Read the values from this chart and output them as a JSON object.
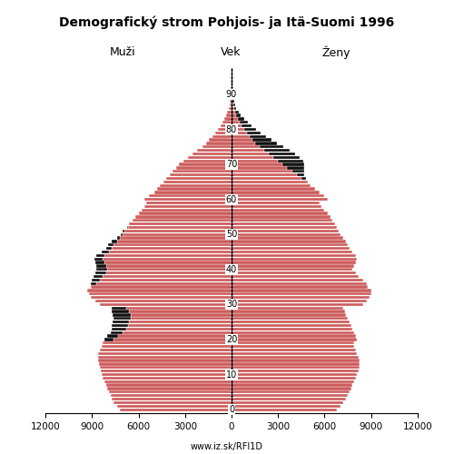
{
  "title": "Demografický strom Pohjois- ja Itä-Suomi 1996",
  "subtitle": "www.iz.sk/RFI1D",
  "label_males": "Muži",
  "label_females": "Ženy",
  "label_age": "Vek",
  "xlim": 12000,
  "bar_color_main": "#cd5c5c",
  "bar_color_dark": "#111111",
  "bar_edgecolor": "#ffffff",
  "background_color": "#ffffff",
  "ages": [
    0,
    1,
    2,
    3,
    4,
    5,
    6,
    7,
    8,
    9,
    10,
    11,
    12,
    13,
    14,
    15,
    16,
    17,
    18,
    19,
    20,
    21,
    22,
    23,
    24,
    25,
    26,
    27,
    28,
    29,
    30,
    31,
    32,
    33,
    34,
    35,
    36,
    37,
    38,
    39,
    40,
    41,
    42,
    43,
    44,
    45,
    46,
    47,
    48,
    49,
    50,
    51,
    52,
    53,
    54,
    55,
    56,
    57,
    58,
    59,
    60,
    61,
    62,
    63,
    64,
    65,
    66,
    67,
    68,
    69,
    70,
    71,
    72,
    73,
    74,
    75,
    76,
    77,
    78,
    79,
    80,
    81,
    82,
    83,
    84,
    85,
    86,
    87,
    88,
    89,
    90,
    91,
    92,
    93,
    94,
    95,
    96,
    97
  ],
  "males_pink": [
    7200,
    7400,
    7600,
    7700,
    7800,
    7900,
    8000,
    8100,
    8200,
    8300,
    8400,
    8450,
    8500,
    8550,
    8600,
    8600,
    8600,
    8500,
    8400,
    8300,
    7600,
    7300,
    7000,
    6800,
    6700,
    6600,
    6500,
    6500,
    6600,
    6800,
    8500,
    8800,
    9100,
    9200,
    9300,
    9100,
    8700,
    8500,
    8300,
    8100,
    8000,
    8100,
    8200,
    8300,
    8200,
    7900,
    7700,
    7600,
    7400,
    7200,
    7000,
    6900,
    6700,
    6600,
    6400,
    6200,
    6000,
    5800,
    5600,
    5500,
    5600,
    5300,
    5000,
    4800,
    4600,
    4400,
    4200,
    4000,
    3800,
    3600,
    3400,
    3100,
    2800,
    2500,
    2200,
    1900,
    1650,
    1450,
    1250,
    1050,
    880,
    720,
    580,
    460,
    360,
    270,
    200,
    145,
    100,
    65,
    40,
    24,
    14,
    8,
    4,
    2,
    1,
    0
  ],
  "males_dark": [
    0,
    0,
    0,
    0,
    0,
    0,
    0,
    0,
    0,
    0,
    0,
    0,
    0,
    0,
    0,
    0,
    0,
    0,
    0,
    0,
    600,
    700,
    800,
    900,
    1000,
    1050,
    1100,
    1150,
    1100,
    950,
    0,
    0,
    0,
    0,
    0,
    0,
    400,
    500,
    600,
    700,
    700,
    650,
    600,
    550,
    500,
    450,
    400,
    350,
    300,
    200,
    150,
    100,
    50,
    0,
    0,
    0,
    0,
    0,
    0,
    0,
    0,
    0,
    0,
    0,
    0,
    0,
    0,
    0,
    0,
    0,
    0,
    0,
    0,
    0,
    0,
    0,
    0,
    0,
    0,
    0,
    0,
    0,
    0,
    0,
    0,
    0,
    0,
    0,
    0,
    0,
    0,
    0,
    0,
    0,
    0,
    0,
    0,
    0
  ],
  "females_pink": [
    6800,
    7000,
    7200,
    7400,
    7500,
    7600,
    7700,
    7800,
    7900,
    8000,
    8100,
    8200,
    8250,
    8250,
    8250,
    8200,
    8100,
    8000,
    7900,
    7900,
    8100,
    8000,
    7900,
    7800,
    7700,
    7600,
    7500,
    7400,
    7300,
    7200,
    8500,
    8700,
    8900,
    9000,
    9000,
    8800,
    8700,
    8500,
    8200,
    8000,
    7800,
    7900,
    8000,
    8100,
    8000,
    7800,
    7600,
    7500,
    7400,
    7200,
    7000,
    6900,
    6800,
    6700,
    6500,
    6400,
    6200,
    6000,
    5800,
    5700,
    6200,
    6000,
    5700,
    5400,
    5100,
    4900,
    4500,
    4200,
    3900,
    3600,
    3300,
    3000,
    2700,
    2400,
    2100,
    1800,
    1550,
    1350,
    1150,
    970,
    820,
    670,
    540,
    420,
    320,
    240,
    170,
    120,
    80,
    52,
    32,
    19,
    11,
    6,
    3,
    2,
    1,
    0
  ],
  "females_dark": [
    0,
    0,
    0,
    0,
    0,
    0,
    0,
    0,
    0,
    0,
    0,
    0,
    0,
    0,
    0,
    0,
    0,
    0,
    0,
    0,
    0,
    0,
    0,
    0,
    0,
    0,
    0,
    0,
    0,
    0,
    0,
    0,
    0,
    0,
    0,
    0,
    0,
    0,
    0,
    0,
    0,
    0,
    0,
    0,
    0,
    0,
    0,
    0,
    0,
    0,
    0,
    0,
    0,
    0,
    0,
    0,
    0,
    0,
    0,
    0,
    0,
    0,
    0,
    0,
    0,
    0,
    300,
    500,
    800,
    1100,
    1400,
    1600,
    1700,
    1700,
    1650,
    1550,
    1400,
    1250,
    1100,
    930,
    780,
    630,
    500,
    390,
    290,
    210,
    150,
    105,
    70,
    45,
    28,
    17,
    10,
    6,
    3,
    2,
    1,
    0
  ],
  "xticks": [
    0,
    3000,
    6000,
    9000,
    12000
  ],
  "ytick_major": [
    0,
    10,
    20,
    30,
    40,
    50,
    60,
    70,
    80,
    90
  ]
}
